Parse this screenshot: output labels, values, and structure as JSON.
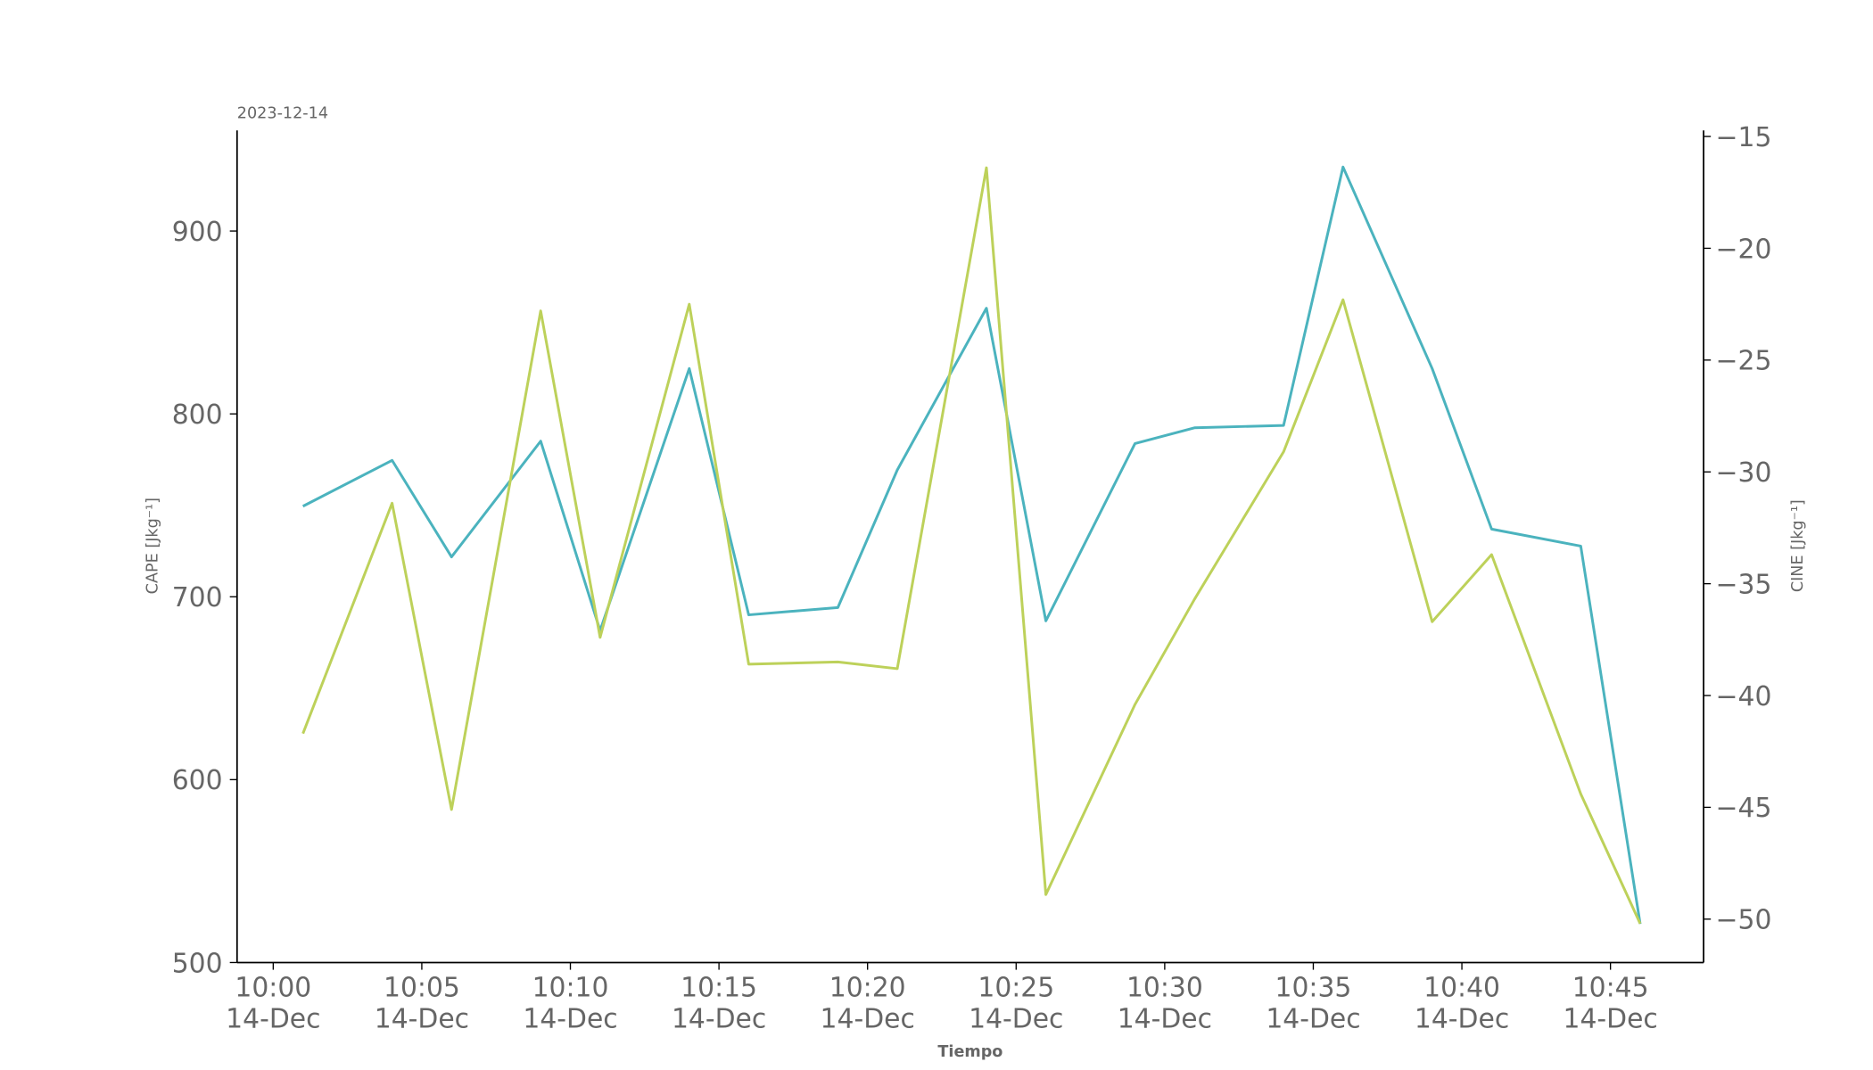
{
  "chart_data": {
    "type": "line",
    "annotation": "2023-12-14",
    "x_label": "Tiempo",
    "y_label": "CAPE [Jkg⁻¹]",
    "y2_label": "CINE [Jkg⁻¹]",
    "x": [
      "10:01",
      "10:04",
      "10:06",
      "10:09",
      "10:11",
      "10:14",
      "10:16",
      "10:19",
      "10:21",
      "10:24",
      "10:26",
      "10:29",
      "10:31",
      "10:34",
      "10:36",
      "10:39",
      "10:41",
      "10:44",
      "10:46"
    ],
    "series": [
      {
        "color": "#4bb3be",
        "values": [
          749.5,
          774.6,
          721.8,
          785.1,
          681.5,
          824.8,
          690.1,
          694.1,
          769.3,
          857.8,
          686.8,
          783.8,
          792.4,
          793.7,
          935,
          824.8,
          737,
          727.7,
          521.1
        ]
      },
      {
        "color": "#bdd15a",
        "axis": "y2",
        "values": [
          -41.7,
          -31.4,
          -45.1,
          -22.8,
          -37.4,
          -22.5,
          -38.6,
          -38.5,
          -38.8,
          -16.4,
          -48.9,
          -40.4,
          -35.7,
          -29.1,
          -22.3,
          -36.7,
          -33.7,
          -44.4,
          -50.2
        ]
      }
    ],
    "xlim": [
      "09:58:47",
      "10:48:08"
    ],
    "xticks": [
      {
        "value": "10:00",
        "label": "10:00\n14-Dec"
      },
      {
        "value": "10:05",
        "label": "10:05\n14-Dec"
      },
      {
        "value": "10:10",
        "label": "10:10\n14-Dec"
      },
      {
        "value": "10:15",
        "label": "10:15\n14-Dec"
      },
      {
        "value": "10:20",
        "label": "10:20\n14-Dec"
      },
      {
        "value": "10:25",
        "label": "10:25\n14-Dec"
      },
      {
        "value": "10:30",
        "label": "10:30\n14-Dec"
      },
      {
        "value": "10:35",
        "label": "10:35\n14-Dec"
      },
      {
        "value": "10:40",
        "label": "10:40\n14-Dec"
      },
      {
        "value": "10:45",
        "label": "10:45\n14-Dec"
      }
    ],
    "ylim": [
      500,
      955
    ],
    "yticks": [
      500,
      600,
      700,
      800,
      900
    ],
    "y2lim": [
      -51.94,
      -14.73
    ],
    "y2ticks": [
      {
        "value": -50,
        "label": "−50"
      },
      {
        "value": -45,
        "label": "−45"
      },
      {
        "value": -40,
        "label": "−40"
      },
      {
        "value": -35,
        "label": "−35"
      },
      {
        "value": -30,
        "label": "−30"
      },
      {
        "value": -25,
        "label": "−25"
      },
      {
        "value": -20,
        "label": "−20"
      },
      {
        "value": -15,
        "label": "−15"
      }
    ]
  }
}
